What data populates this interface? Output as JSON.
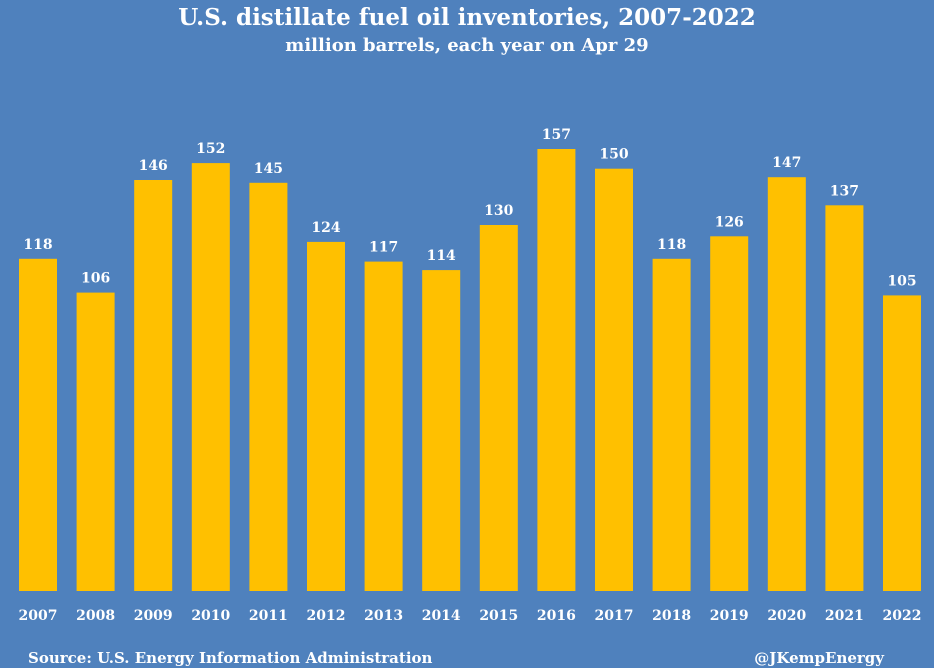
{
  "chart_data": {
    "type": "bar",
    "title": "U.S. distillate fuel oil inventories, 2007-2022",
    "subtitle": "million barrels, each year on Apr 29",
    "categories": [
      "2007",
      "2008",
      "2009",
      "2010",
      "2011",
      "2012",
      "2013",
      "2014",
      "2015",
      "2016",
      "2017",
      "2018",
      "2019",
      "2020",
      "2021",
      "2022"
    ],
    "values": [
      118,
      106,
      146,
      152,
      145,
      124,
      117,
      114,
      130,
      157,
      150,
      118,
      126,
      147,
      137,
      105
    ],
    "data_labels": [
      "118",
      "106",
      "146",
      "152",
      "145",
      "124",
      "117",
      "114",
      "130",
      "157",
      "150",
      "118",
      "126",
      "147",
      "137",
      "105"
    ],
    "ylim": [
      0,
      157
    ],
    "grid": false,
    "legend": "none",
    "colors": {
      "background": "#4f81bd",
      "bar": "#ffc000",
      "text": "#ffffff"
    }
  },
  "footer": {
    "source": "Source: U.S. Energy Information Administration",
    "handle": "@JKempEnergy"
  }
}
